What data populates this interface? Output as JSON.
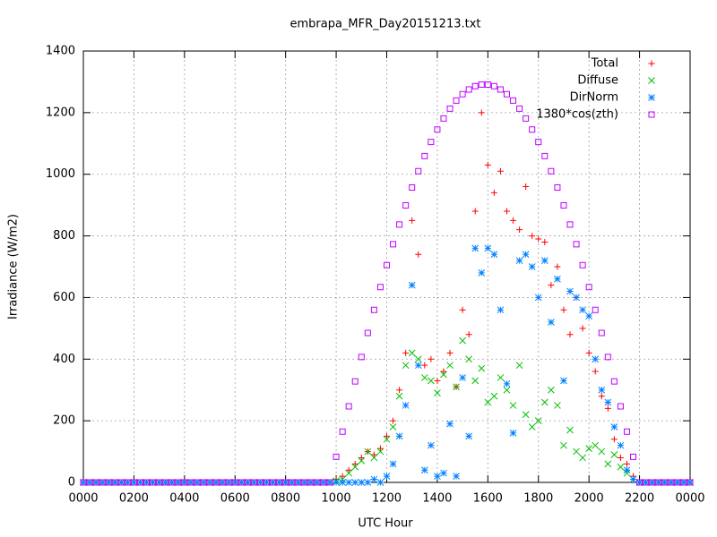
{
  "chart_data": {
    "type": "scatter",
    "title": "embrapa_MFR_Day20151213.txt",
    "x_label": "UTC Hour",
    "y_label": "Irradiance (W/m2)",
    "xlim": [
      0,
      24
    ],
    "ylim": [
      0,
      1400
    ],
    "xticks": [
      {
        "value": 0,
        "label": "0000"
      },
      {
        "value": 2,
        "label": "0200"
      },
      {
        "value": 4,
        "label": "0400"
      },
      {
        "value": 6,
        "label": "0600"
      },
      {
        "value": 8,
        "label": "0800"
      },
      {
        "value": 10,
        "label": "1000"
      },
      {
        "value": 12,
        "label": "1200"
      },
      {
        "value": 14,
        "label": "1400"
      },
      {
        "value": 16,
        "label": "1600"
      },
      {
        "value": 18,
        "label": "1800"
      },
      {
        "value": 20,
        "label": "2000"
      },
      {
        "value": 22,
        "label": "2200"
      },
      {
        "value": 24,
        "label": "0000"
      }
    ],
    "yticks": [
      0,
      200,
      400,
      600,
      800,
      1000,
      1200,
      1400
    ],
    "grid": true,
    "legend": "top-right",
    "x": [
      0,
      0.25,
      0.5,
      0.75,
      1,
      1.25,
      1.5,
      1.75,
      2,
      2.25,
      2.5,
      2.75,
      3,
      3.25,
      3.5,
      3.75,
      4,
      4.25,
      4.5,
      4.75,
      5,
      5.25,
      5.5,
      5.75,
      6,
      6.25,
      6.5,
      6.75,
      7,
      7.25,
      7.5,
      7.75,
      8,
      8.25,
      8.5,
      8.75,
      9,
      9.25,
      9.5,
      9.75,
      10,
      10.25,
      10.5,
      10.75,
      11,
      11.25,
      11.5,
      11.75,
      12,
      12.25,
      12.5,
      12.75,
      13,
      13.25,
      13.5,
      13.75,
      14,
      14.25,
      14.5,
      14.75,
      15,
      15.25,
      15.5,
      15.75,
      16,
      16.25,
      16.5,
      16.75,
      17,
      17.25,
      17.5,
      17.75,
      18,
      18.25,
      18.5,
      18.75,
      19,
      19.25,
      19.5,
      19.75,
      20,
      20.25,
      20.5,
      20.75,
      21,
      21.25,
      21.5,
      21.75,
      22,
      22.25,
      22.5,
      22.75,
      23,
      23.25,
      23.5,
      23.75,
      24
    ],
    "series": [
      {
        "name": "Total",
        "color": "#ff0000",
        "marker": "plus",
        "values": [
          0,
          0,
          0,
          0,
          0,
          0,
          0,
          0,
          0,
          0,
          0,
          0,
          0,
          0,
          0,
          0,
          0,
          0,
          0,
          0,
          0,
          0,
          0,
          0,
          0,
          0,
          0,
          0,
          0,
          0,
          0,
          0,
          0,
          0,
          0,
          0,
          0,
          0,
          0,
          0,
          10,
          20,
          40,
          60,
          80,
          100,
          90,
          110,
          150,
          200,
          300,
          420,
          850,
          740,
          380,
          400,
          330,
          360,
          420,
          310,
          560,
          480,
          880,
          1200,
          1030,
          940,
          1010,
          880,
          850,
          820,
          960,
          800,
          790,
          780,
          640,
          700,
          560,
          480,
          600,
          500,
          420,
          360,
          280,
          240,
          140,
          80,
          60,
          20,
          0,
          0,
          0,
          0,
          0,
          0,
          0,
          0,
          0
        ]
      },
      {
        "name": "Diffuse",
        "color": "#00c000",
        "marker": "cross",
        "values": [
          0,
          0,
          0,
          0,
          0,
          0,
          0,
          0,
          0,
          0,
          0,
          0,
          0,
          0,
          0,
          0,
          0,
          0,
          0,
          0,
          0,
          0,
          0,
          0,
          0,
          0,
          0,
          0,
          0,
          0,
          0,
          0,
          0,
          0,
          0,
          0,
          0,
          0,
          0,
          0,
          5,
          10,
          30,
          50,
          70,
          100,
          80,
          100,
          140,
          180,
          280,
          380,
          420,
          400,
          340,
          330,
          290,
          350,
          380,
          310,
          460,
          400,
          330,
          370,
          260,
          280,
          340,
          300,
          250,
          380,
          220,
          180,
          200,
          260,
          300,
          250,
          120,
          170,
          100,
          80,
          110,
          120,
          100,
          60,
          90,
          50,
          30,
          10,
          0,
          0,
          0,
          0,
          0,
          0,
          0,
          0,
          0
        ]
      },
      {
        "name": "DirNorm",
        "color": "#0080ff",
        "marker": "star",
        "values": [
          0,
          0,
          0,
          0,
          0,
          0,
          0,
          0,
          0,
          0,
          0,
          0,
          0,
          0,
          0,
          0,
          0,
          0,
          0,
          0,
          0,
          0,
          0,
          0,
          0,
          0,
          0,
          0,
          0,
          0,
          0,
          0,
          0,
          0,
          0,
          0,
          0,
          0,
          0,
          0,
          0,
          0,
          0,
          0,
          0,
          0,
          10,
          0,
          20,
          60,
          150,
          250,
          640,
          380,
          40,
          120,
          20,
          30,
          190,
          20,
          340,
          150,
          760,
          680,
          760,
          740,
          560,
          320,
          160,
          720,
          740,
          700,
          600,
          720,
          520,
          660,
          330,
          620,
          600,
          560,
          540,
          400,
          300,
          260,
          180,
          120,
          40,
          10,
          0,
          0,
          0,
          0,
          0,
          0,
          0,
          0,
          0
        ]
      },
      {
        "name": "1380*cos(zth)",
        "color": "#c000ff",
        "marker": "square",
        "values": [
          0,
          0,
          0,
          0,
          0,
          0,
          0,
          0,
          0,
          0,
          0,
          0,
          0,
          0,
          0,
          0,
          0,
          0,
          0,
          0,
          0,
          0,
          0,
          0,
          0,
          0,
          0,
          0,
          0,
          0,
          0,
          0,
          0,
          0,
          0,
          0,
          0,
          0,
          0,
          0,
          83,
          165,
          247,
          328,
          407,
          485,
          560,
          634,
          705,
          773,
          837,
          899,
          957,
          1010,
          1059,
          1105,
          1145,
          1181,
          1213,
          1239,
          1260,
          1275,
          1286,
          1291,
          1291,
          1286,
          1275,
          1260,
          1239,
          1213,
          1181,
          1145,
          1105,
          1059,
          1010,
          957,
          899,
          837,
          773,
          705,
          634,
          560,
          485,
          407,
          328,
          247,
          165,
          83,
          0,
          0,
          0,
          0,
          0,
          0,
          0,
          0,
          0
        ]
      }
    ]
  }
}
